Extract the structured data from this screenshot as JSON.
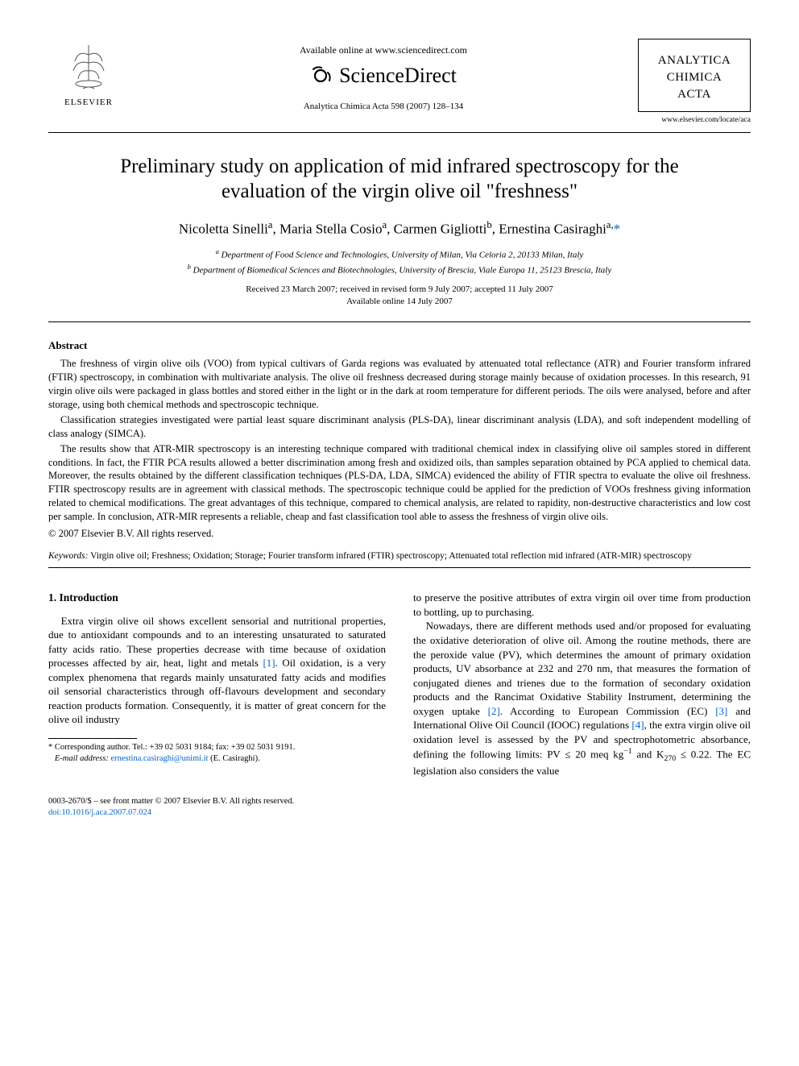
{
  "header": {
    "elsevier_label": "ELSEVIER",
    "available_online": "Available online at www.sciencedirect.com",
    "sciencedirect": "ScienceDirect",
    "journal_ref": "Analytica Chimica Acta 598 (2007) 128–134",
    "journal_name_1": "ANALYTICA",
    "journal_name_2": "CHIMICA",
    "journal_name_3": "ACTA",
    "journal_url": "www.elsevier.com/locate/aca"
  },
  "title": "Preliminary study on application of mid infrared spectroscopy for the evaluation of the virgin olive oil \"freshness\"",
  "authors_html": "Nicoletta Sinelli<span class='sup'>a</span>, Maria Stella Cosio<span class='sup'>a</span>, Carmen Gigliotti<span class='sup'>b</span>, Ernestina Casiraghi<span class='sup'>a,</span><a href='#'>*</a>",
  "affiliations": {
    "a": "Department of Food Science and Technologies, University of Milan, Via Celoria 2, 20133 Milan, Italy",
    "b": "Department of Biomedical Sciences and Biotechnologies, University of Brescia, Viale Europa 11, 25123 Brescia, Italy"
  },
  "dates": {
    "received": "Received 23 March 2007; received in revised form 9 July 2007; accepted 11 July 2007",
    "online": "Available online 14 July 2007"
  },
  "abstract_heading": "Abstract",
  "abstract": {
    "p1": "The freshness of virgin olive oils (VOO) from typical cultivars of Garda regions was evaluated by attenuated total reflectance (ATR) and Fourier transform infrared (FTIR) spectroscopy, in combination with multivariate analysis. The olive oil freshness decreased during storage mainly because of oxidation processes. In this research, 91 virgin olive oils were packaged in glass bottles and stored either in the light or in the dark at room temperature for different periods. The oils were analysed, before and after storage, using both chemical methods and spectroscopic technique.",
    "p2": "Classification strategies investigated were partial least square discriminant analysis (PLS-DA), linear discriminant analysis (LDA), and soft independent modelling of class analogy (SIMCA).",
    "p3": "The results show that ATR-MIR spectroscopy is an interesting technique compared with traditional chemical index in classifying olive oil samples stored in different conditions. In fact, the FTIR PCA results allowed a better discrimination among fresh and oxidized oils, than samples separation obtained by PCA applied to chemical data. Moreover, the results obtained by the different classification techniques (PLS-DA, LDA, SIMCA) evidenced the ability of FTIR spectra to evaluate the olive oil freshness. FTIR spectroscopy results are in agreement with classical methods. The spectroscopic technique could be applied for the prediction of VOOs freshness giving information related to chemical modifications. The great advantages of this technique, compared to chemical analysis, are related to rapidity, non-destructive characteristics and low cost per sample. In conclusion, ATR-MIR represents a reliable, cheap and fast classification tool able to assess the freshness of virgin olive oils.",
    "copyright": "© 2007 Elsevier B.V. All rights reserved."
  },
  "keywords_label": "Keywords:",
  "keywords": "Virgin olive oil; Freshness; Oxidation; Storage; Fourier transform infrared (FTIR) spectroscopy; Attenuated total reflection mid infrared (ATR-MIR) spectroscopy",
  "intro_heading": "1.  Introduction",
  "body": {
    "col1": "Extra virgin olive oil shows excellent sensorial and nutritional properties, due to antioxidant compounds and to an interesting unsaturated to saturated fatty acids ratio. These properties decrease with time because of oxidation processes affected by air, heat, light and metals <span class='cite'>[1]</span>. Oil oxidation, is a very complex phenomena that regards mainly unsaturated fatty acids and modifies oil sensorial characteristics through off-flavours development and secondary reaction products formation. Consequently, it is matter of great concern for the olive oil industry",
    "col2": "to preserve the positive attributes of extra virgin oil over time from production to bottling, up to purchasing.",
    "col2b": "Nowadays, there are different methods used and/or proposed for evaluating the oxidative deterioration of olive oil. Among the routine methods, there are the peroxide value (PV), which determines the amount of primary oxidation products, UV absorbance at 232 and 270 nm, that measures the formation of conjugated dienes and trienes due to the formation of secondary oxidation products and the Rancimat Oxidative Stability Instrument, determining the oxygen uptake <span class='cite'>[2]</span>. According to European Commission (EC) <span class='cite'>[3]</span> and International Olive Oil Council (IOOC) regulations <span class='cite'>[4]</span>, the extra virgin olive oil oxidation level is assessed by the PV and spectrophotometric absorbance, defining the following limits: PV ≤ 20 meq kg<span class='sup'>−1</span> and K<span class='sub'>270</span> ≤ 0.22. The EC legislation also considers the value"
  },
  "footnote": {
    "corr": "Corresponding author. Tel.: +39 02 5031 9184; fax: +39 02 5031 9191.",
    "email_label": "E-mail address:",
    "email": "ernestina.casiraghi@unimi.it",
    "email_who": "(E. Casiraghi)."
  },
  "footer": {
    "line1": "0003-2670/$ – see front matter © 2007 Elsevier B.V. All rights reserved.",
    "doi": "doi:10.1016/j.aca.2007.07.024"
  },
  "colors": {
    "link": "#0066cc",
    "text": "#000000",
    "bg": "#ffffff",
    "orange": "#f7931e"
  }
}
